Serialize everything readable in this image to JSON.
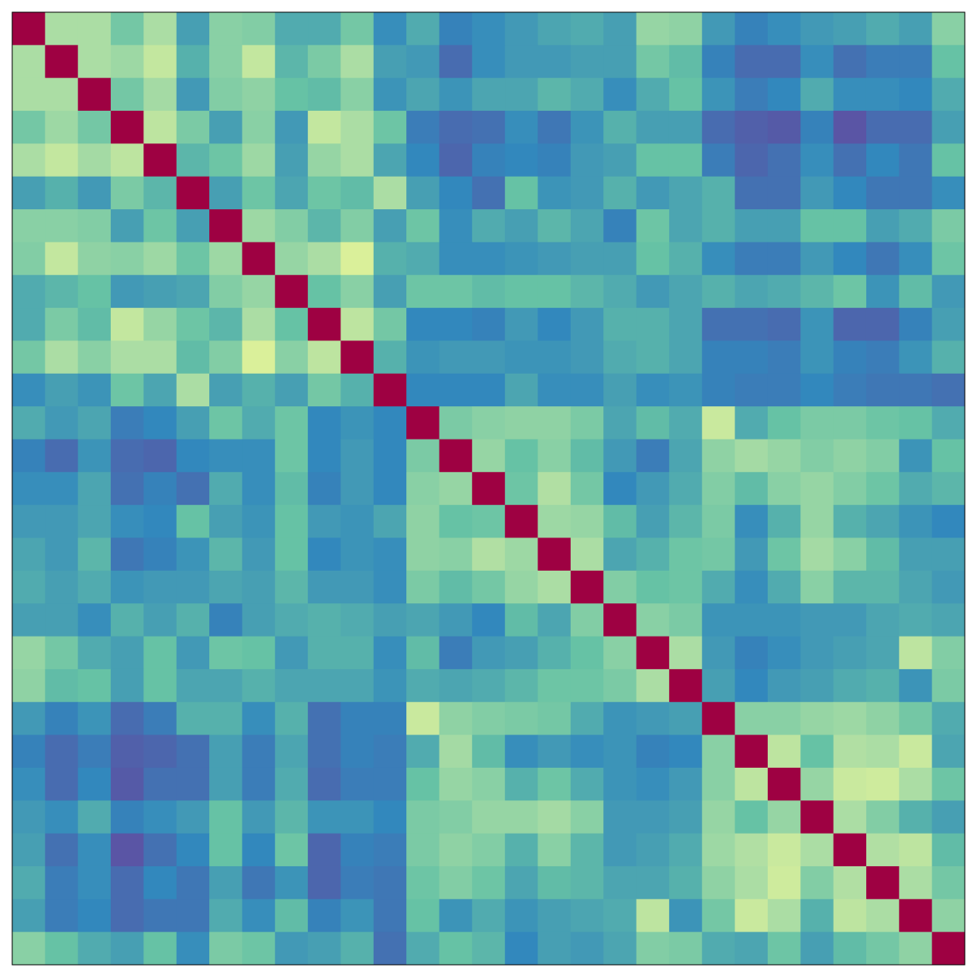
{
  "chart_data": {
    "type": "heatmap",
    "vlim": [
      0,
      1
    ],
    "colormap": [
      "#5e4fa2",
      "#3288bd",
      "#66c2a5",
      "#abdda4",
      "#e6f598",
      "#ffffbf",
      "#fee08b",
      "#fdae61",
      "#f46d43",
      "#d53e4f",
      "#9e0142"
    ],
    "values": [
      [
        1,
        0.3,
        0.3,
        0.22,
        0.3,
        0.14,
        0.25,
        0.24,
        0.16,
        0.16,
        0.22,
        0.11,
        0.16,
        0.09,
        0.11,
        0.13,
        0.15,
        0.16,
        0.14,
        0.27,
        0.26,
        0.13,
        0.09,
        0.11,
        0.13,
        0.14,
        0.16,
        0.14,
        0.25
      ],
      [
        0.3,
        1,
        0.3,
        0.28,
        0.34,
        0.17,
        0.25,
        0.34,
        0.18,
        0.23,
        0.3,
        0.14,
        0.13,
        0.05,
        0.11,
        0.13,
        0.13,
        0.14,
        0.14,
        0.22,
        0.19,
        0.09,
        0.05,
        0.05,
        0.11,
        0.06,
        0.08,
        0.08,
        0.2
      ],
      [
        0.3,
        0.3,
        1,
        0.22,
        0.29,
        0.13,
        0.24,
        0.26,
        0.2,
        0.19,
        0.25,
        0.12,
        0.15,
        0.12,
        0.15,
        0.15,
        0.18,
        0.16,
        0.11,
        0.16,
        0.2,
        0.12,
        0.08,
        0.1,
        0.16,
        0.11,
        0.11,
        0.1,
        0.16
      ],
      [
        0.22,
        0.28,
        0.22,
        1,
        0.33,
        0.23,
        0.14,
        0.25,
        0.13,
        0.34,
        0.3,
        0.21,
        0.08,
        0.05,
        0.06,
        0.11,
        0.07,
        0.12,
        0.17,
        0.14,
        0.14,
        0.05,
        0.03,
        0.02,
        0.09,
        0.01,
        0.05,
        0.05,
        0.14
      ],
      [
        0.3,
        0.34,
        0.29,
        0.33,
        1,
        0.18,
        0.21,
        0.28,
        0.14,
        0.27,
        0.3,
        0.15,
        0.1,
        0.04,
        0.09,
        0.1,
        0.09,
        0.13,
        0.14,
        0.2,
        0.2,
        0.08,
        0.04,
        0.06,
        0.11,
        0.06,
        0.1,
        0.07,
        0.2
      ],
      [
        0.14,
        0.17,
        0.13,
        0.23,
        0.18,
        1,
        0.14,
        0.21,
        0.15,
        0.21,
        0.19,
        0.3,
        0.14,
        0.1,
        0.06,
        0.2,
        0.12,
        0.13,
        0.17,
        0.13,
        0.15,
        0.17,
        0.06,
        0.06,
        0.13,
        0.1,
        0.07,
        0.07,
        0.11
      ],
      [
        0.25,
        0.25,
        0.24,
        0.14,
        0.21,
        0.14,
        1,
        0.28,
        0.24,
        0.18,
        0.24,
        0.14,
        0.21,
        0.11,
        0.16,
        0.14,
        0.18,
        0.15,
        0.09,
        0.21,
        0.15,
        0.17,
        0.14,
        0.14,
        0.2,
        0.2,
        0.14,
        0.16,
        0.23
      ],
      [
        0.24,
        0.34,
        0.26,
        0.25,
        0.28,
        0.21,
        0.28,
        1,
        0.27,
        0.3,
        0.38,
        0.17,
        0.16,
        0.11,
        0.11,
        0.12,
        0.13,
        0.14,
        0.14,
        0.2,
        0.17,
        0.11,
        0.08,
        0.08,
        0.13,
        0.1,
        0.07,
        0.11,
        0.21
      ],
      [
        0.16,
        0.18,
        0.2,
        0.13,
        0.14,
        0.15,
        0.24,
        0.27,
        1,
        0.2,
        0.25,
        0.14,
        0.21,
        0.21,
        0.19,
        0.2,
        0.2,
        0.18,
        0.16,
        0.13,
        0.15,
        0.17,
        0.15,
        0.16,
        0.18,
        0.21,
        0.12,
        0.19,
        0.13
      ],
      [
        0.16,
        0.23,
        0.19,
        0.34,
        0.27,
        0.21,
        0.18,
        0.3,
        0.2,
        1,
        0.33,
        0.22,
        0.1,
        0.1,
        0.09,
        0.13,
        0.1,
        0.13,
        0.17,
        0.17,
        0.15,
        0.06,
        0.06,
        0.05,
        0.12,
        0.04,
        0.04,
        0.09,
        0.14
      ],
      [
        0.22,
        0.3,
        0.25,
        0.3,
        0.3,
        0.19,
        0.24,
        0.38,
        0.25,
        0.33,
        1,
        0.17,
        0.12,
        0.13,
        0.13,
        0.12,
        0.12,
        0.13,
        0.16,
        0.17,
        0.15,
        0.09,
        0.09,
        0.08,
        0.12,
        0.09,
        0.08,
        0.12,
        0.17
      ],
      [
        0.11,
        0.14,
        0.12,
        0.21,
        0.15,
        0.3,
        0.14,
        0.17,
        0.14,
        0.22,
        0.17,
        1,
        0.1,
        0.1,
        0.1,
        0.15,
        0.11,
        0.11,
        0.14,
        0.11,
        0.12,
        0.09,
        0.08,
        0.08,
        0.1,
        0.08,
        0.07,
        0.07,
        0.06
      ],
      [
        0.16,
        0.13,
        0.15,
        0.08,
        0.1,
        0.14,
        0.21,
        0.16,
        0.21,
        0.1,
        0.12,
        0.1,
        1,
        0.23,
        0.25,
        0.26,
        0.26,
        0.23,
        0.15,
        0.19,
        0.16,
        0.35,
        0.16,
        0.2,
        0.23,
        0.23,
        0.21,
        0.2,
        0.16
      ],
      [
        0.09,
        0.05,
        0.12,
        0.05,
        0.04,
        0.1,
        0.11,
        0.11,
        0.21,
        0.1,
        0.13,
        0.1,
        0.23,
        1,
        0.27,
        0.2,
        0.25,
        0.19,
        0.13,
        0.08,
        0.15,
        0.26,
        0.29,
        0.27,
        0.24,
        0.26,
        0.24,
        0.12,
        0.2
      ],
      [
        0.11,
        0.11,
        0.15,
        0.06,
        0.09,
        0.06,
        0.16,
        0.11,
        0.19,
        0.09,
        0.13,
        0.1,
        0.25,
        0.27,
        1,
        0.21,
        0.31,
        0.22,
        0.1,
        0.13,
        0.16,
        0.24,
        0.19,
        0.25,
        0.27,
        0.24,
        0.21,
        0.16,
        0.18
      ],
      [
        0.13,
        0.13,
        0.15,
        0.11,
        0.1,
        0.2,
        0.14,
        0.12,
        0.2,
        0.13,
        0.12,
        0.15,
        0.26,
        0.2,
        0.21,
        1,
        0.28,
        0.27,
        0.19,
        0.14,
        0.18,
        0.23,
        0.11,
        0.17,
        0.27,
        0.17,
        0.15,
        0.12,
        0.1
      ],
      [
        0.15,
        0.13,
        0.18,
        0.07,
        0.09,
        0.12,
        0.18,
        0.13,
        0.2,
        0.1,
        0.12,
        0.11,
        0.26,
        0.25,
        0.31,
        0.28,
        1,
        0.3,
        0.15,
        0.17,
        0.21,
        0.22,
        0.13,
        0.21,
        0.29,
        0.25,
        0.19,
        0.14,
        0.14
      ],
      [
        0.16,
        0.14,
        0.16,
        0.12,
        0.13,
        0.13,
        0.15,
        0.14,
        0.18,
        0.13,
        0.13,
        0.11,
        0.23,
        0.19,
        0.22,
        0.27,
        0.3,
        1,
        0.24,
        0.2,
        0.21,
        0.16,
        0.11,
        0.16,
        0.25,
        0.18,
        0.18,
        0.15,
        0.13
      ],
      [
        0.14,
        0.14,
        0.11,
        0.17,
        0.14,
        0.17,
        0.09,
        0.14,
        0.16,
        0.17,
        0.16,
        0.14,
        0.15,
        0.13,
        0.1,
        0.19,
        0.15,
        0.24,
        1,
        0.25,
        0.23,
        0.12,
        0.12,
        0.12,
        0.13,
        0.13,
        0.15,
        0.16,
        0.15
      ],
      [
        0.27,
        0.22,
        0.16,
        0.14,
        0.2,
        0.13,
        0.21,
        0.2,
        0.13,
        0.17,
        0.17,
        0.11,
        0.19,
        0.08,
        0.13,
        0.14,
        0.17,
        0.2,
        0.25,
        1,
        0.3,
        0.13,
        0.09,
        0.11,
        0.13,
        0.14,
        0.15,
        0.33,
        0.24
      ],
      [
        0.26,
        0.19,
        0.2,
        0.14,
        0.2,
        0.15,
        0.15,
        0.17,
        0.15,
        0.15,
        0.15,
        0.12,
        0.16,
        0.15,
        0.16,
        0.18,
        0.21,
        0.21,
        0.23,
        0.3,
        1,
        0.14,
        0.1,
        0.13,
        0.14,
        0.16,
        0.17,
        0.12,
        0.23
      ],
      [
        0.13,
        0.09,
        0.12,
        0.05,
        0.08,
        0.17,
        0.17,
        0.11,
        0.17,
        0.06,
        0.09,
        0.09,
        0.35,
        0.26,
        0.24,
        0.23,
        0.22,
        0.16,
        0.12,
        0.13,
        0.14,
        1,
        0.25,
        0.25,
        0.27,
        0.28,
        0.26,
        0.22,
        0.16
      ],
      [
        0.09,
        0.05,
        0.08,
        0.03,
        0.04,
        0.06,
        0.14,
        0.08,
        0.15,
        0.06,
        0.09,
        0.08,
        0.16,
        0.29,
        0.19,
        0.11,
        0.13,
        0.11,
        0.12,
        0.09,
        0.1,
        0.25,
        1,
        0.33,
        0.2,
        0.31,
        0.3,
        0.35,
        0.15
      ],
      [
        0.11,
        0.05,
        0.1,
        0.02,
        0.06,
        0.06,
        0.14,
        0.08,
        0.16,
        0.05,
        0.08,
        0.08,
        0.2,
        0.27,
        0.25,
        0.17,
        0.21,
        0.16,
        0.12,
        0.11,
        0.13,
        0.25,
        0.33,
        1,
        0.27,
        0.35,
        0.36,
        0.3,
        0.21
      ],
      [
        0.13,
        0.11,
        0.16,
        0.09,
        0.11,
        0.13,
        0.2,
        0.13,
        0.18,
        0.12,
        0.12,
        0.1,
        0.23,
        0.24,
        0.27,
        0.27,
        0.29,
        0.25,
        0.13,
        0.13,
        0.14,
        0.27,
        0.2,
        0.27,
        1,
        0.3,
        0.24,
        0.17,
        0.14
      ],
      [
        0.14,
        0.06,
        0.11,
        0.01,
        0.06,
        0.1,
        0.2,
        0.1,
        0.21,
        0.04,
        0.09,
        0.08,
        0.23,
        0.26,
        0.24,
        0.17,
        0.25,
        0.18,
        0.13,
        0.14,
        0.16,
        0.28,
        0.31,
        0.35,
        0.3,
        1,
        0.31,
        0.33,
        0.19
      ],
      [
        0.16,
        0.08,
        0.11,
        0.05,
        0.1,
        0.07,
        0.14,
        0.07,
        0.12,
        0.04,
        0.08,
        0.07,
        0.21,
        0.24,
        0.21,
        0.15,
        0.19,
        0.18,
        0.15,
        0.15,
        0.17,
        0.26,
        0.3,
        0.36,
        0.24,
        0.31,
        1,
        0.3,
        0.22
      ],
      [
        0.14,
        0.08,
        0.1,
        0.05,
        0.07,
        0.07,
        0.16,
        0.11,
        0.19,
        0.09,
        0.12,
        0.07,
        0.2,
        0.12,
        0.16,
        0.12,
        0.14,
        0.15,
        0.16,
        0.33,
        0.12,
        0.22,
        0.35,
        0.3,
        0.17,
        0.33,
        0.3,
        1,
        0.26
      ],
      [
        0.25,
        0.2,
        0.16,
        0.14,
        0.2,
        0.11,
        0.23,
        0.21,
        0.13,
        0.14,
        0.17,
        0.06,
        0.16,
        0.2,
        0.18,
        0.1,
        0.14,
        0.13,
        0.15,
        0.24,
        0.23,
        0.16,
        0.15,
        0.21,
        0.14,
        0.19,
        0.22,
        0.26,
        1
      ]
    ]
  }
}
